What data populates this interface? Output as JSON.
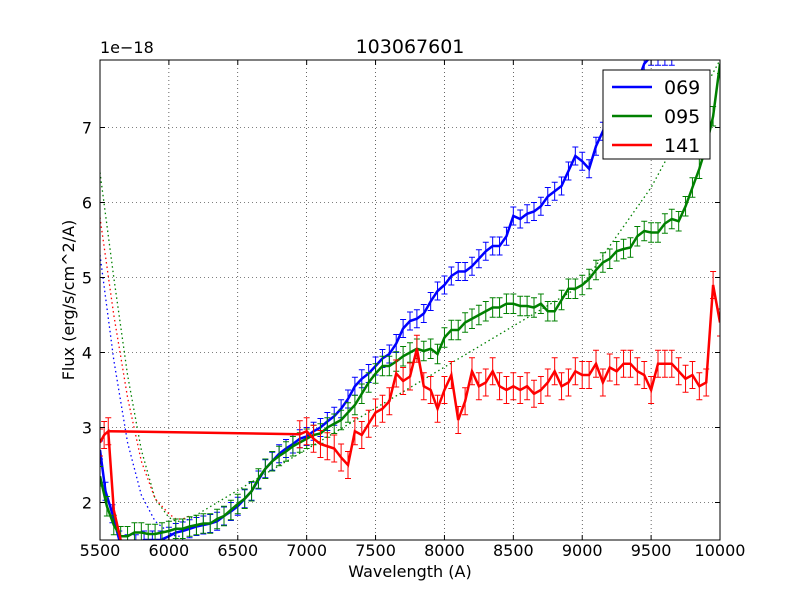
{
  "chart_data": {
    "type": "line",
    "title": "103067601",
    "xlabel": "Wavelength (A)",
    "ylabel": "Flux (erg/s/cm^2/A)",
    "y_scale_label": "1e−18",
    "xlim": [
      5500,
      10000
    ],
    "ylim": [
      1.5,
      7.9
    ],
    "x_ticks": [
      5500,
      6000,
      6500,
      7000,
      7500,
      8000,
      8500,
      9000,
      9500,
      10000
    ],
    "y_ticks": [
      2,
      3,
      4,
      5,
      6,
      7
    ],
    "grid": true,
    "legend_position": "top-right",
    "series": [
      {
        "name": "069",
        "color": "#0000ff",
        "x": [
          5500,
          5540,
          5590,
          5640,
          5700,
          5760,
          5820,
          5880,
          5940,
          6000,
          6050,
          6100,
          6150,
          6200,
          6250,
          6300,
          6350,
          6400,
          6450,
          6500,
          6550,
          6600,
          6650,
          6700,
          6750,
          6800,
          6850,
          6900,
          6950,
          7000,
          7050,
          7100,
          7150,
          7200,
          7250,
          7300,
          7350,
          7400,
          7450,
          7500,
          7550,
          7600,
          7650,
          7700,
          7750,
          7800,
          7850,
          7900,
          7950,
          8000,
          8050,
          8100,
          8150,
          8200,
          8250,
          8300,
          8350,
          8400,
          8450,
          8500,
          8550,
          8600,
          8650,
          8700,
          8750,
          8800,
          8850,
          8900,
          8950,
          9000,
          9050,
          9100,
          9150,
          9200,
          9250,
          9300,
          9350,
          9400,
          9450,
          9500,
          9550,
          9600,
          9650
        ],
        "y": [
          2.7,
          2.15,
          1.85,
          1.5,
          1.45,
          1.45,
          1.5,
          1.5,
          1.5,
          1.55,
          1.6,
          1.62,
          1.65,
          1.68,
          1.7,
          1.72,
          1.75,
          1.82,
          1.88,
          1.95,
          2.05,
          2.15,
          2.3,
          2.45,
          2.55,
          2.65,
          2.72,
          2.78,
          2.85,
          2.88,
          2.95,
          3.0,
          3.08,
          3.15,
          3.25,
          3.38,
          3.55,
          3.65,
          3.72,
          3.82,
          3.92,
          3.98,
          4.12,
          4.32,
          4.42,
          4.45,
          4.52,
          4.68,
          4.82,
          4.9,
          5.02,
          5.08,
          5.08,
          5.15,
          5.25,
          5.35,
          5.42,
          5.42,
          5.55,
          5.82,
          5.78,
          5.85,
          5.88,
          5.95,
          6.08,
          6.15,
          6.22,
          6.42,
          6.62,
          6.55,
          6.45,
          6.75,
          6.95,
          7.15,
          7.3,
          7.25,
          7.4,
          7.6,
          7.85,
          7.95,
          7.95,
          7.95,
          7.95
        ],
        "errors": 0.12
      },
      {
        "name": "095",
        "color": "#008000",
        "x": [
          5500,
          5550,
          5600,
          5650,
          5700,
          5750,
          5800,
          5850,
          5900,
          5950,
          6000,
          6050,
          6100,
          6150,
          6200,
          6250,
          6300,
          6350,
          6400,
          6450,
          6500,
          6550,
          6600,
          6650,
          6700,
          6750,
          6800,
          6850,
          6900,
          6950,
          7000,
          7050,
          7100,
          7150,
          7200,
          7250,
          7300,
          7350,
          7400,
          7450,
          7500,
          7550,
          7600,
          7650,
          7700,
          7750,
          7800,
          7850,
          7900,
          7950,
          8000,
          8050,
          8100,
          8150,
          8200,
          8250,
          8300,
          8350,
          8400,
          8450,
          8500,
          8550,
          8600,
          8650,
          8700,
          8750,
          8800,
          8850,
          8900,
          8950,
          9000,
          9050,
          9100,
          9150,
          9200,
          9250,
          9300,
          9350,
          9400,
          9450,
          9500,
          9550,
          9600,
          9650,
          9700,
          9750,
          9800,
          9850,
          9900,
          9950,
          10000
        ],
        "y": [
          2.35,
          1.95,
          1.7,
          1.55,
          1.55,
          1.6,
          1.6,
          1.58,
          1.58,
          1.6,
          1.62,
          1.65,
          1.65,
          1.68,
          1.7,
          1.72,
          1.72,
          1.78,
          1.82,
          1.9,
          1.98,
          2.05,
          2.15,
          2.32,
          2.45,
          2.55,
          2.62,
          2.68,
          2.75,
          2.8,
          2.85,
          2.9,
          2.92,
          3.0,
          3.05,
          3.1,
          3.2,
          3.3,
          3.45,
          3.6,
          3.72,
          3.82,
          3.82,
          3.88,
          3.95,
          4.0,
          4.05,
          4.02,
          4.05,
          3.98,
          4.2,
          4.3,
          4.3,
          4.4,
          4.45,
          4.5,
          4.55,
          4.6,
          4.6,
          4.65,
          4.65,
          4.62,
          4.62,
          4.6,
          4.65,
          4.55,
          4.55,
          4.7,
          4.85,
          4.85,
          4.9,
          4.98,
          5.1,
          5.2,
          5.25,
          5.35,
          5.38,
          5.4,
          5.55,
          5.62,
          5.6,
          5.6,
          5.72,
          5.78,
          5.75,
          5.95,
          6.2,
          6.45,
          6.75,
          7.15,
          7.85
        ],
        "errors": 0.13
      },
      {
        "name": "141",
        "color": "#ff0000",
        "x": [
          5500,
          5530,
          5560,
          5580,
          5620,
          5660,
          5700,
          5750,
          5800,
          5850,
          5900,
          5950,
          6000,
          6050,
          6100,
          6150,
          6200,
          6250,
          6300,
          6350,
          6400,
          6450,
          6500,
          6550,
          6600,
          6650,
          6700,
          6750,
          6800,
          6850,
          6900,
          6950,
          7000,
          7050,
          7100,
          7150,
          7200,
          7250,
          7300,
          7350,
          7400,
          7450,
          7500,
          7550,
          7600,
          7650,
          7700,
          7750,
          7800,
          7850,
          7900,
          7950,
          8000,
          8050,
          8100,
          8150,
          8200,
          8250,
          8300,
          8350,
          8400,
          8450,
          8500,
          8550,
          8600,
          8650,
          8700,
          8750,
          8800,
          8850,
          8900,
          8950,
          9000,
          9050,
          9100,
          9150,
          9200,
          9250,
          9300,
          9350,
          9400,
          9450,
          9500,
          9550,
          9600,
          9650,
          9700,
          9750,
          9800,
          9850,
          9900,
          9950,
          10000
        ],
        "y": [
          2.8,
          2.9,
          2.95,
          2.95,
          2.95,
          2.95,
          2.95,
          2.95,
          2.95,
          2.94,
          2.94,
          2.94,
          2.94,
          2.94,
          2.94,
          2.93,
          2.93,
          2.93,
          2.93,
          2.93,
          2.93,
          2.92,
          2.92,
          2.92,
          2.92,
          2.92,
          2.92,
          2.92,
          2.91,
          2.91,
          2.91,
          2.91,
          2.95,
          2.85,
          2.78,
          2.75,
          2.72,
          2.6,
          2.5,
          2.95,
          2.9,
          3.05,
          3.2,
          3.25,
          3.35,
          3.72,
          3.62,
          3.68,
          4.05,
          3.55,
          3.5,
          3.25,
          3.5,
          3.7,
          3.1,
          3.35,
          3.75,
          3.55,
          3.6,
          3.75,
          3.55,
          3.5,
          3.55,
          3.5,
          3.55,
          3.45,
          3.5,
          3.6,
          3.75,
          3.55,
          3.6,
          3.75,
          3.7,
          3.7,
          3.85,
          3.6,
          3.8,
          3.75,
          3.85,
          3.85,
          3.75,
          3.7,
          3.5,
          3.85,
          3.85,
          3.85,
          3.75,
          3.65,
          3.7,
          3.55,
          3.6,
          4.9,
          4.4
        ],
        "errors": 0.18,
        "gap_segment": {
          "x": [
            5560,
            6950
          ],
          "y": [
            2.95,
            2.91
          ]
        }
      }
    ],
    "dotted_curves": [
      {
        "name": "069-model",
        "color": "#0000ff",
        "x": [
          5500,
          5600,
          5700,
          5800,
          5900,
          6000,
          6050,
          6100
        ],
        "y": [
          5.3,
          3.9,
          2.8,
          2.1,
          1.75,
          1.6,
          1.55,
          1.55
        ]
      },
      {
        "name": "095-model",
        "color": "#008000",
        "x": [
          5500,
          5600,
          5700,
          5800,
          5900,
          6000,
          6050,
          6100,
          6150,
          9000,
          9500,
          10000
        ],
        "y": [
          6.4,
          5.0,
          3.7,
          2.7,
          2.05,
          1.8,
          1.75,
          1.75,
          1.78,
          4.9,
          6.2,
          7.9
        ]
      },
      {
        "name": "141-model",
        "color": "#ff0000",
        "x": [
          5500,
          5600,
          5700,
          5800,
          5900,
          6000,
          6050,
          6100,
          6150
        ],
        "y": [
          5.8,
          4.5,
          3.4,
          2.55,
          2.05,
          1.85,
          1.78,
          1.78,
          1.82
        ]
      }
    ]
  }
}
